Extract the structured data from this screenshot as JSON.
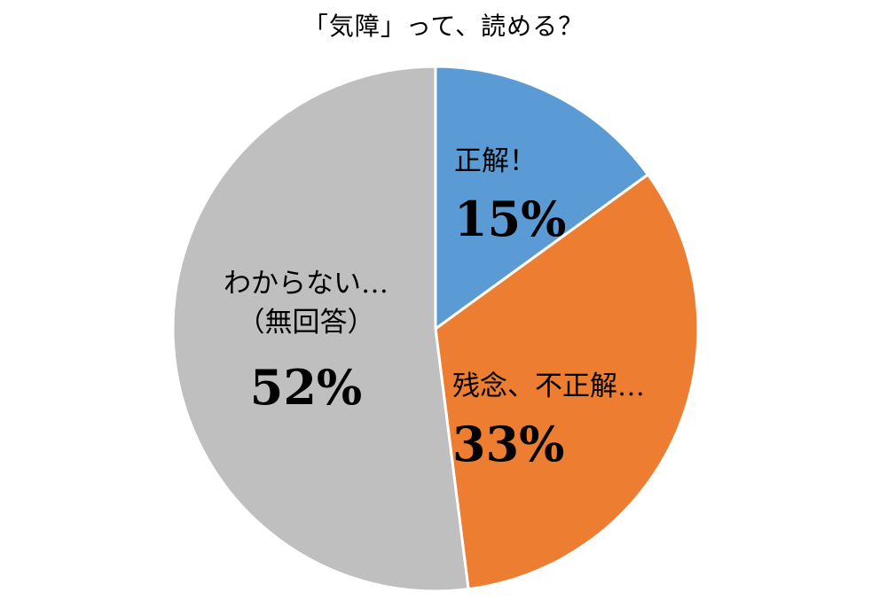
{
  "chart_data": {
    "type": "pie",
    "title": "「気障」って、読める？",
    "slices": [
      {
        "label_lines": [
          "正解！"
        ],
        "value": 15,
        "value_label": "15%",
        "color": "#5B9BD5"
      },
      {
        "label_lines": [
          "残念、不正解…"
        ],
        "value": 33,
        "value_label": "33%",
        "color": "#ED7D31"
      },
      {
        "label_lines": [
          "わからない…",
          "（無回答）"
        ],
        "value": 52,
        "value_label": "52%",
        "color": "#BFBFBF"
      }
    ],
    "start": "12 o'clock",
    "direction": "clockwise",
    "legend": "none"
  }
}
